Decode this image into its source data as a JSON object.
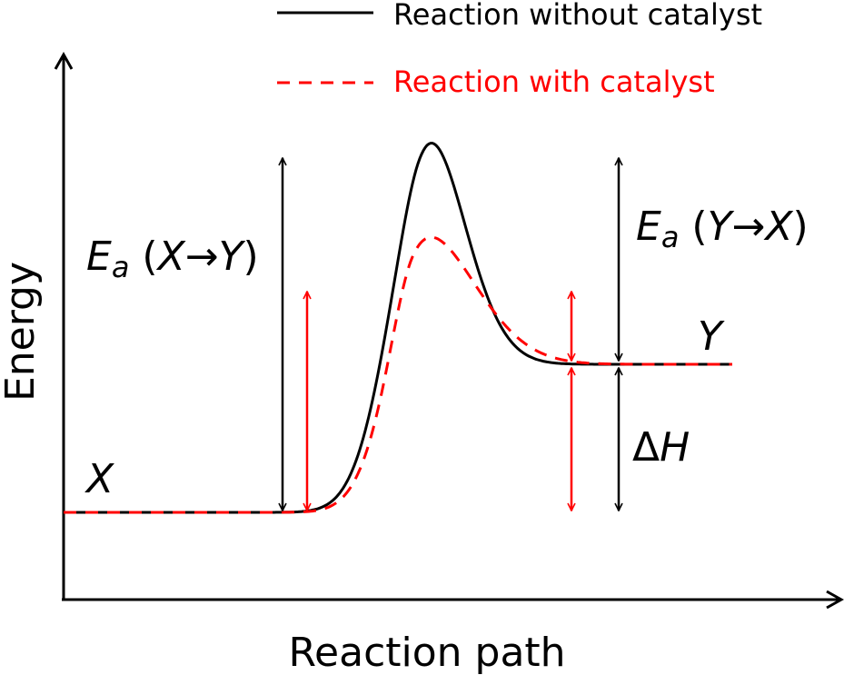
{
  "legend": {
    "items": [
      {
        "label": "Reaction without catalyst",
        "color": "#000000",
        "dash": "solid"
      },
      {
        "label": "Reaction with catalyst",
        "color": "#ff0000",
        "dash": "dashed"
      }
    ]
  },
  "axes": {
    "xlabel": "Reaction path",
    "ylabel": "Energy"
  },
  "states": {
    "reactant": "X",
    "product": "Y"
  },
  "labels": {
    "ea_forward": {
      "symbol": "E",
      "sub": "a",
      "rest": " (",
      "from": "X",
      "arrow": "→",
      "to": "Y",
      "close": ")"
    },
    "ea_reverse": {
      "symbol": "E",
      "sub": "a",
      "rest": " (",
      "from": "Y",
      "arrow": "→",
      "to": "X",
      "close": ")"
    },
    "delta_h": {
      "delta": "Δ",
      "symbol": "H"
    }
  },
  "colors": {
    "uncatalyzed": "#000000",
    "catalyzed": "#ff0000",
    "axes": "#000000"
  }
}
